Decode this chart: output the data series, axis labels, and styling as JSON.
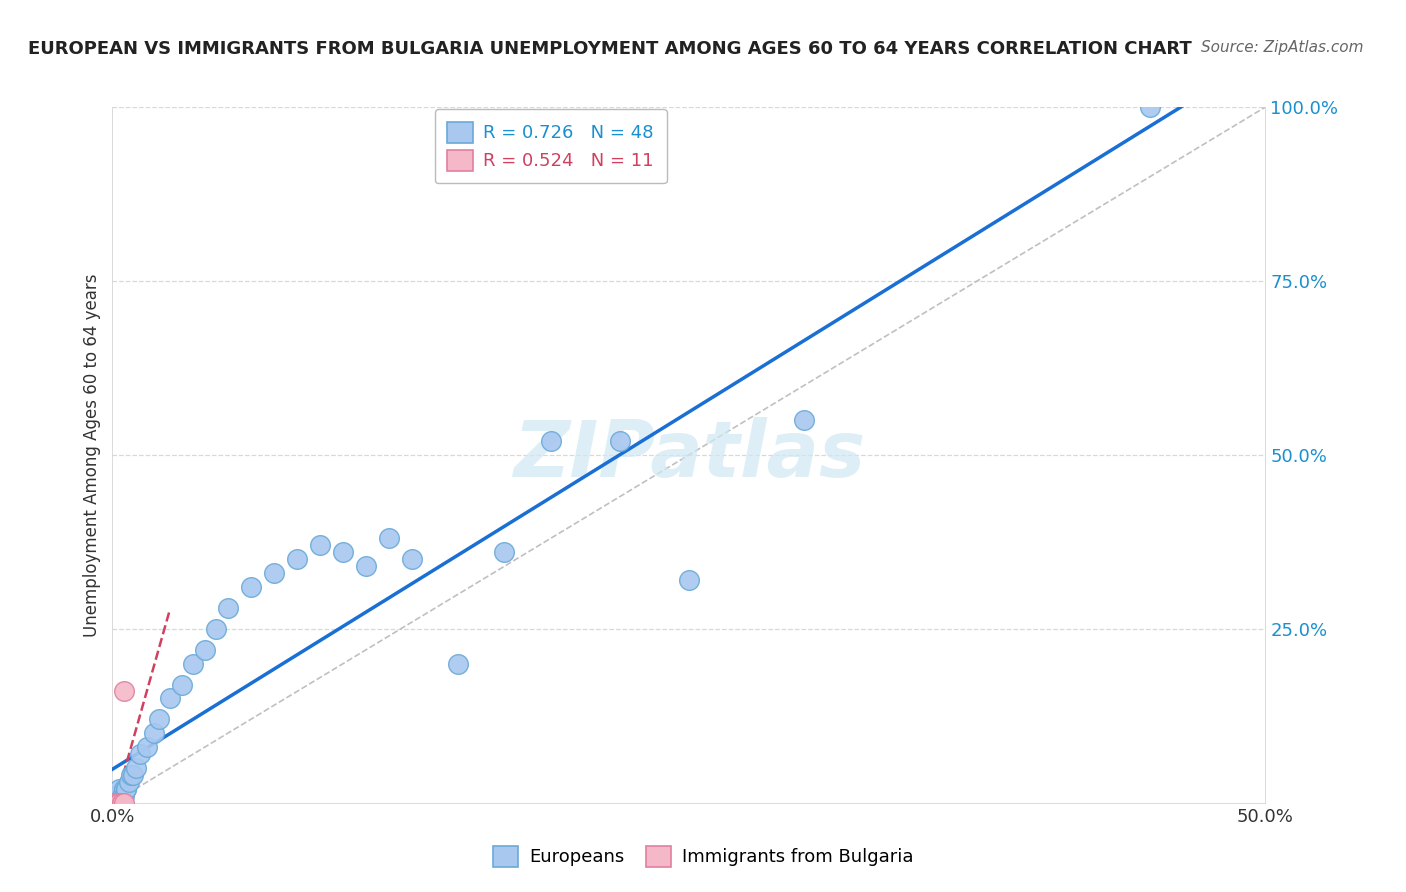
{
  "title": "EUROPEAN VS IMMIGRANTS FROM BULGARIA UNEMPLOYMENT AMONG AGES 60 TO 64 YEARS CORRELATION CHART",
  "source": "Source: ZipAtlas.com",
  "ylabel": "Unemployment Among Ages 60 to 64 years",
  "xlim": [
    0,
    0.5
  ],
  "ylim": [
    0,
    1.0
  ],
  "european_color": "#a8c8f0",
  "european_edge_color": "#6aaad8",
  "bulgaria_color": "#f5b8c8",
  "bulgaria_edge_color": "#e080a0",
  "regression_line_color": "#1a6fd4",
  "regression_bulgaria_color": "#d04060",
  "diagonal_color": "#c0c0c0",
  "background_color": "#ffffff",
  "grid_color": "#d8d8d8",
  "eu_x": [
    0.0,
    0.0,
    0.001,
    0.001,
    0.001,
    0.001,
    0.001,
    0.002,
    0.002,
    0.002,
    0.003,
    0.003,
    0.003,
    0.004,
    0.004,
    0.005,
    0.005,
    0.006,
    0.006,
    0.007,
    0.008,
    0.009,
    0.01,
    0.012,
    0.015,
    0.018,
    0.02,
    0.025,
    0.03,
    0.035,
    0.04,
    0.045,
    0.05,
    0.06,
    0.07,
    0.08,
    0.09,
    0.1,
    0.11,
    0.12,
    0.13,
    0.15,
    0.17,
    0.19,
    0.22,
    0.25,
    0.3,
    0.45
  ],
  "eu_y": [
    0.0,
    0.0,
    0.0,
    0.01,
    0.0,
    0.0,
    0.01,
    0.0,
    0.01,
    0.0,
    0.0,
    0.01,
    0.02,
    0.0,
    0.01,
    0.02,
    0.01,
    0.02,
    0.02,
    0.03,
    0.04,
    0.04,
    0.05,
    0.07,
    0.08,
    0.1,
    0.12,
    0.15,
    0.17,
    0.2,
    0.22,
    0.25,
    0.28,
    0.31,
    0.33,
    0.35,
    0.37,
    0.36,
    0.34,
    0.38,
    0.35,
    0.2,
    0.36,
    0.52,
    0.52,
    0.32,
    0.55,
    1.0
  ],
  "bg_x": [
    0.0,
    0.0,
    0.001,
    0.001,
    0.002,
    0.002,
    0.003,
    0.004,
    0.004,
    0.005,
    0.005
  ],
  "bg_y": [
    0.0,
    0.0,
    0.0,
    0.0,
    0.0,
    0.0,
    0.0,
    0.0,
    0.0,
    0.16,
    0.0
  ],
  "watermark_text": "ZIPatlas",
  "watermark_color": "#d0e8f5",
  "legend1_label": "R = 0.726   N = 48",
  "legend2_label": "R = 0.524   N = 11",
  "legend1_color": "#1a90d0",
  "legend2_color": "#d04060",
  "bottom_legend1": "Europeans",
  "bottom_legend2": "Immigrants from Bulgaria"
}
